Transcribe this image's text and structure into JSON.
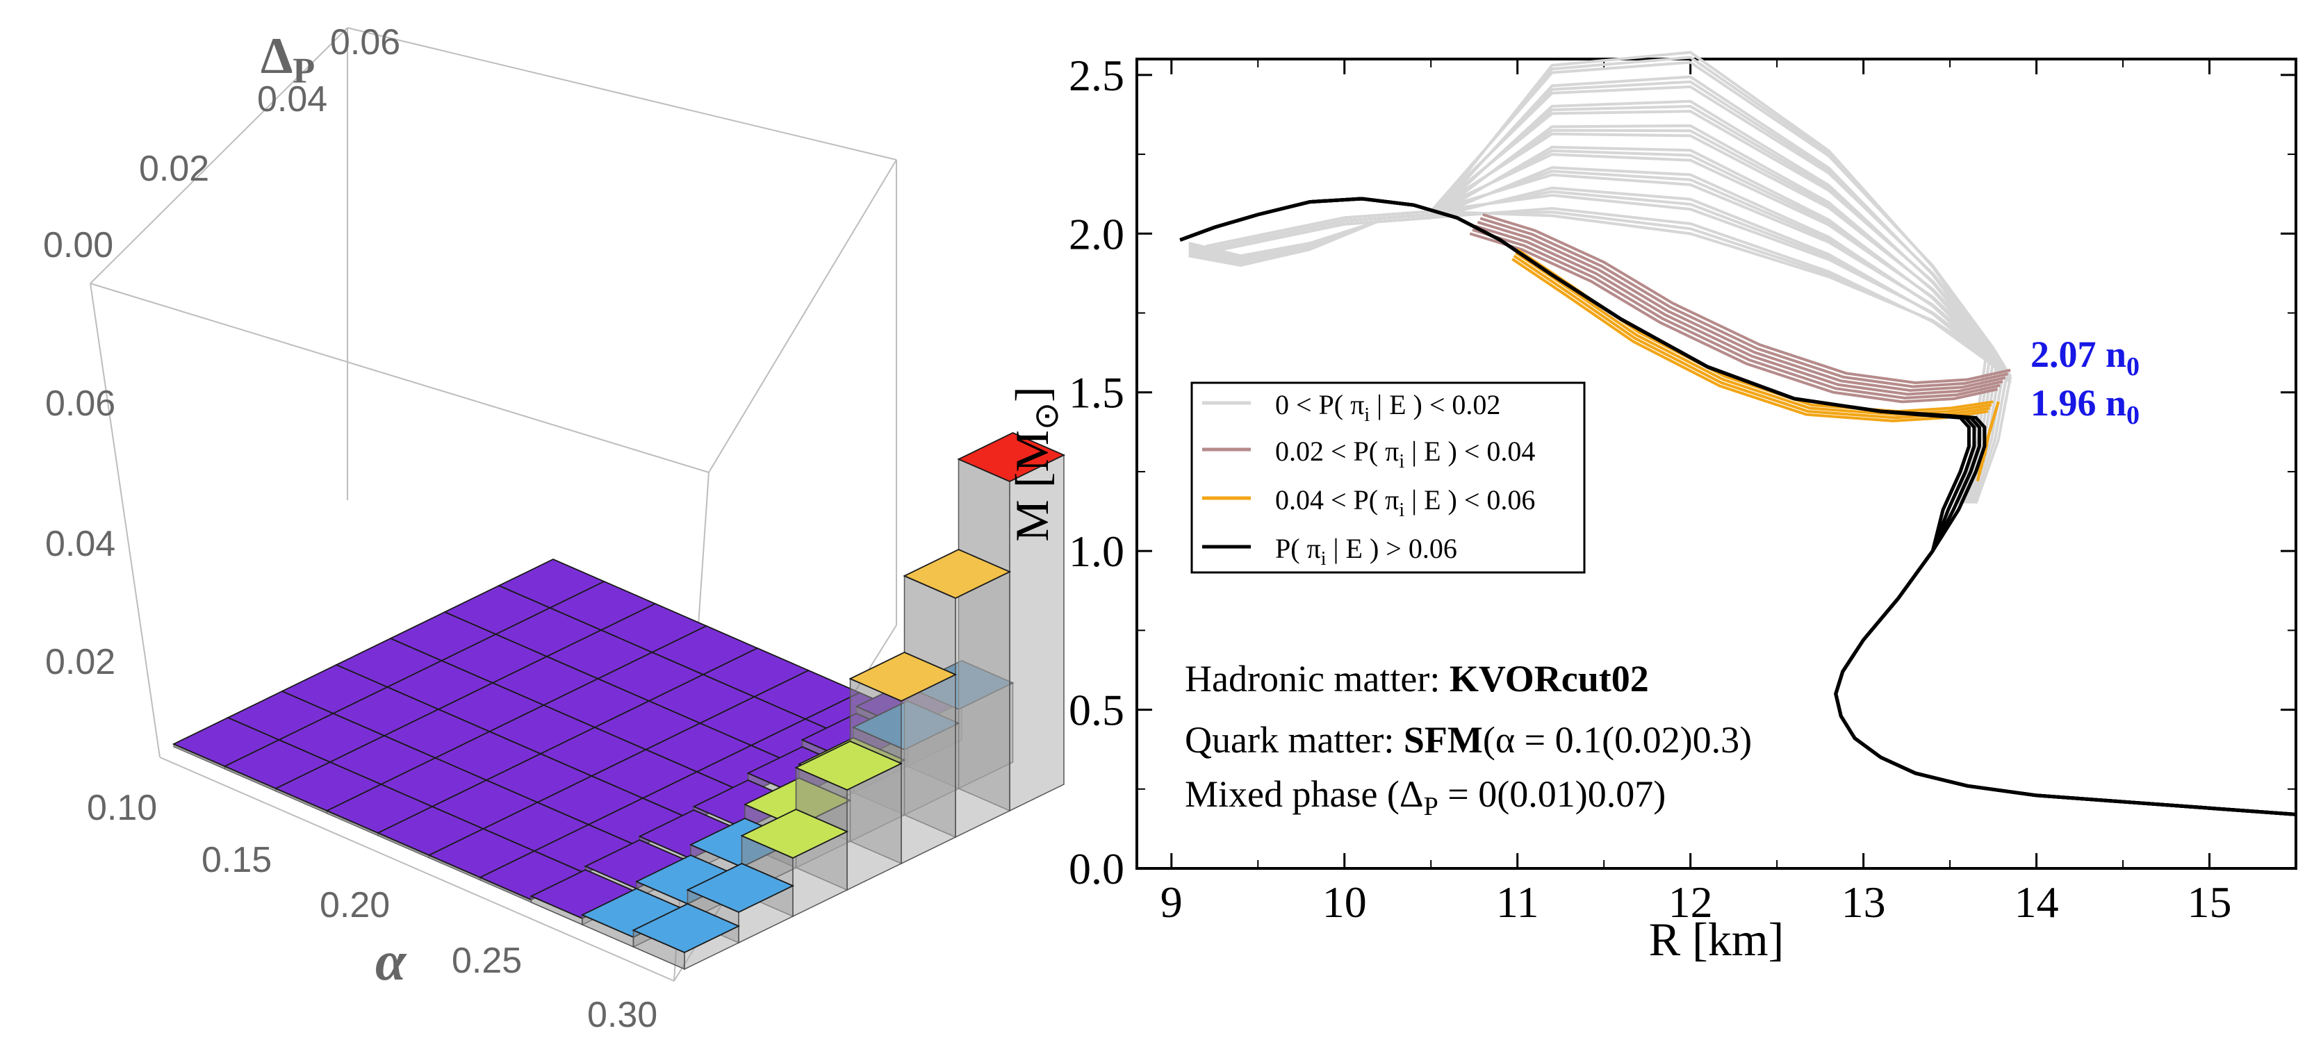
{
  "chart_data": [
    {
      "type": "bar3d",
      "title": "",
      "xlabel": "α",
      "ylabel": "Δ_P",
      "xlabel_parts": {
        "main": "α"
      },
      "ylabel_parts": {
        "main": "Δ",
        "sub": "P"
      },
      "x_ticks": [
        "0.10",
        "0.15",
        "0.20",
        "0.25",
        "0.30"
      ],
      "y_ticks": [
        "0.00",
        "0.02",
        "0.04",
        "0.06"
      ],
      "z_ticks": [
        "0.02",
        "0.04",
        "0.06"
      ],
      "alpha_values": [
        0.1,
        0.12,
        0.14,
        0.16,
        0.18,
        0.2,
        0.22,
        0.24,
        0.26,
        0.28,
        0.3
      ],
      "delta_values": [
        0.0,
        0.01,
        0.02,
        0.03,
        0.04,
        0.05,
        0.06,
        0.07
      ],
      "note": "Bar heights are probabilities P(π_i|E); nearly all bars are low (purple) except the large-α column where heights rise toward the rear (red peak).",
      "colors": {
        "low": "#7a2fd6",
        "mid_low": "#4ea5e3",
        "mid": "#c6e356",
        "mid_high": "#f3c24a",
        "high": "#f0261c"
      }
    },
    {
      "type": "line",
      "title": "",
      "xlabel": "R [km]",
      "ylabel": "M [M_⊙]",
      "ylabel_parts": {
        "main": "M [M",
        "sub": "⊙",
        "end": "]"
      },
      "xlim": [
        8.8,
        15.5
      ],
      "ylim": [
        0.0,
        2.55
      ],
      "x_ticks": [
        "9",
        "10",
        "11",
        "12",
        "13",
        "14",
        "15"
      ],
      "y_ticks": [
        "0.0",
        "0.5",
        "1.0",
        "1.5",
        "2.0",
        "2.5"
      ],
      "legend": {
        "placement": "middle-left",
        "entries": [
          {
            "text": "0 < P( π_i | E ) < 0.02",
            "parts": {
              "pre": "0 < P( π",
              "sub": "i",
              "post": " | E ) < 0.02"
            },
            "color": "#d6d6d6"
          },
          {
            "text": "0.02 < P( π_i | E ) < 0.04",
            "parts": {
              "pre": "0.02 < P( π",
              "sub": "i",
              "post": " | E ) < 0.04"
            },
            "color": "#b68b8b"
          },
          {
            "text": "0.04 < P( π_i | E ) < 0.06",
            "parts": {
              "pre": "0.04 < P( π",
              "sub": "i",
              "post": " | E ) < 0.06"
            },
            "color": "#f2a516"
          },
          {
            "text": "P( π_i | E ) > 0.06",
            "parts": {
              "pre": "P( π",
              "sub": "i",
              "post": " | E ) > 0.06"
            },
            "color": "#000000"
          }
        ]
      },
      "annotations": [
        {
          "text": "2.07 n_0",
          "parts": {
            "main": "2.07 n",
            "sub": "0"
          },
          "x": 13.85,
          "y": 1.6,
          "color": "#1717e6"
        },
        {
          "text": "1.96 n_0",
          "parts": {
            "main": "1.96 n",
            "sub": "0"
          },
          "x": 13.85,
          "y": 1.45,
          "color": "#1717e6"
        },
        {
          "text": "Hadronic matter: KVORcut02",
          "parts": {
            "pre": "Hadronic matter: ",
            "bold": "KVORcut02"
          }
        },
        {
          "text": "Quark matter: SFM(α = 0.1(0.02)0.3)",
          "parts": {
            "pre": "Quark matter: ",
            "bold": "SFM",
            "post": "(α = 0.1(0.02)0.3)"
          }
        },
        {
          "text": "Mixed phase (Δ_P = 0(0.01)0.07)",
          "parts": {
            "pre": "Mixed phase (Δ",
            "sub": "P",
            "post": " = 0(0.01)0.07)"
          }
        }
      ],
      "series": [
        {
          "name": "P( π_i | E ) > 0.06",
          "color": "#000000",
          "x": [
            15.5,
            15.0,
            14.5,
            14.0,
            13.6,
            13.3,
            13.1,
            12.95,
            12.87,
            12.84,
            12.88,
            13.0,
            13.2,
            13.4,
            13.55,
            13.65,
            13.7,
            13.7,
            13.65,
            13.4,
            13.1,
            12.6,
            12.1,
            11.6,
            11.2,
            10.9,
            10.65,
            10.4,
            10.1,
            9.8,
            9.5,
            9.25,
            9.05
          ],
          "y": [
            0.17,
            0.19,
            0.21,
            0.23,
            0.26,
            0.3,
            0.35,
            0.41,
            0.48,
            0.55,
            0.62,
            0.72,
            0.85,
            1.0,
            1.13,
            1.25,
            1.33,
            1.39,
            1.42,
            1.43,
            1.44,
            1.48,
            1.58,
            1.73,
            1.87,
            1.98,
            2.05,
            2.09,
            2.11,
            2.1,
            2.06,
            2.02,
            1.98
          ]
        },
        {
          "name": "0.04 < P( π_i | E ) < 0.06",
          "color": "#f2a516",
          "x": [
            13.75,
            13.5,
            13.2,
            12.7,
            12.2,
            11.7,
            11.3,
            11.0
          ],
          "y": [
            1.47,
            1.45,
            1.44,
            1.46,
            1.55,
            1.69,
            1.84,
            1.95
          ]
        },
        {
          "name": "0.02 < P( π_i | E ) < 0.04",
          "color": "#b68b8b",
          "x": [
            13.85,
            13.6,
            13.3,
            12.9,
            12.4,
            11.9,
            11.5,
            11.1,
            10.8
          ],
          "y": [
            1.57,
            1.54,
            1.53,
            1.56,
            1.65,
            1.78,
            1.91,
            2.01,
            2.06
          ]
        },
        {
          "name": "0 < P( π_i | E ) < 0.02",
          "color": "#d6d6d6",
          "x": [
            9.2,
            9.6,
            10.0,
            10.5,
            11.0,
            11.5,
            12.0,
            12.5,
            12.8,
            13.2,
            13.5,
            13.75,
            13.85,
            13.8,
            13.7
          ],
          "y": [
            1.96,
            1.98,
            2.02,
            2.06,
            2.12,
            2.17,
            2.21,
            2.25,
            2.27,
            2.24,
            2.15,
            1.95,
            1.65,
            1.4,
            1.2
          ]
        }
      ]
    }
  ]
}
